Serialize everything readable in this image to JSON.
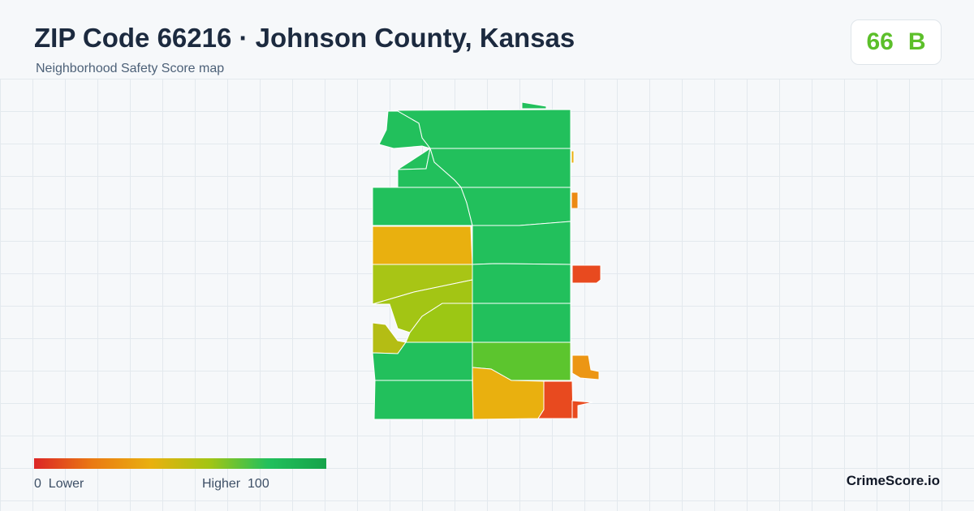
{
  "header": {
    "title": "ZIP Code 66216 · Johnson County, Kansas",
    "subtitle": "Neighborhood Safety Score map"
  },
  "score": {
    "value": 66,
    "grade": "B"
  },
  "legend": {
    "min": 0,
    "min_label": "Lower",
    "max_label": "Higher",
    "max": 100
  },
  "footer": {
    "brand": "CrimeScore.io"
  }
}
